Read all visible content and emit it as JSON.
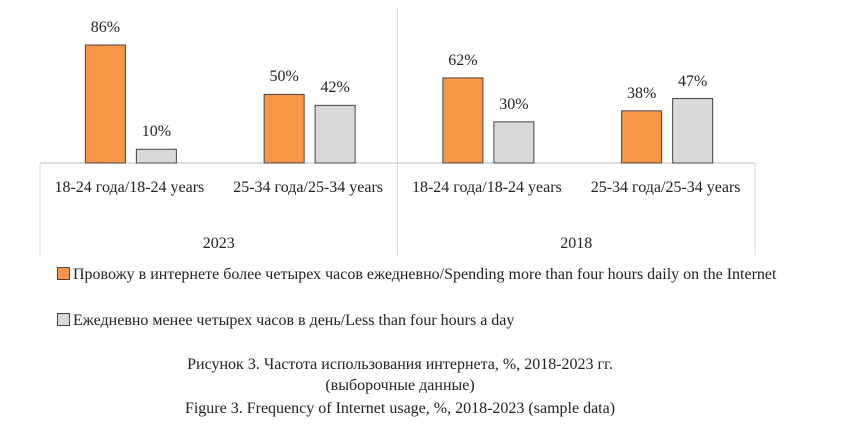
{
  "chart_data": {
    "type": "bar",
    "categories": [
      "18-24 года/18-24 years",
      "25-34 года/25-34 years",
      "18-24 года/18-24 years",
      "25-34 года/25-34 years"
    ],
    "category_groups": [
      "2023",
      "2018"
    ],
    "series": [
      {
        "name": "Провожу в интернете более четырех часов ежедневно/Spending more than four hours daily on the Internet",
        "color": "#f79646",
        "values": [
          86,
          50,
          62,
          38
        ],
        "value_labels": [
          "86%",
          "50%",
          "62%",
          "38%"
        ]
      },
      {
        "name": "Ежедневно менее четырех часов в день/Less than four hours a day",
        "color": "#d9d9d9",
        "values": [
          10,
          42,
          30,
          47
        ],
        "value_labels": [
          "10%",
          "42%",
          "30%",
          "47%"
        ]
      }
    ],
    "caption": [
      "Рисунок 3. Частота использования интернета, %, 2018-2023 гг.",
      "(выборочные данные)",
      "Figure 3. Frequency of Internet usage, %, 2018-2023 (sample data)"
    ]
  }
}
